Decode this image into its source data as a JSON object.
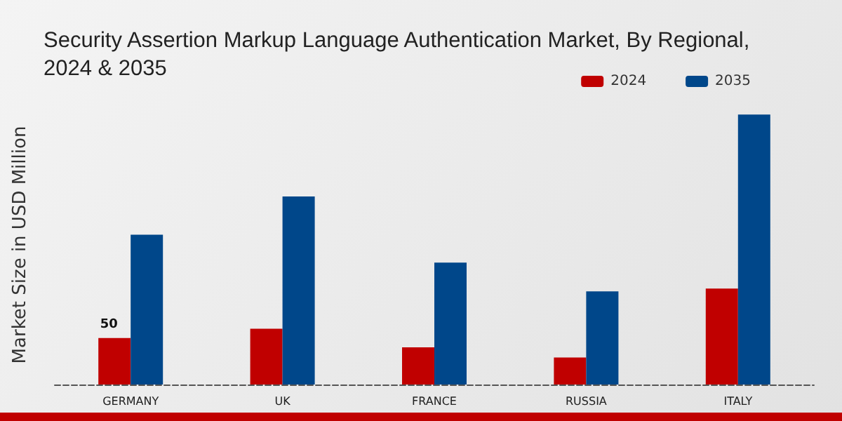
{
  "chart_data": {
    "type": "bar",
    "title": "Security Assertion Markup Language Authentication Market, By Regional,\n2024 & 2035",
    "ylabel": "Market Size in USD Million",
    "categories": [
      "GERMANY",
      "UK",
      "FRANCE",
      "RUSSIA",
      "ITALY"
    ],
    "series": [
      {
        "name": "2024",
        "color": "#c00000",
        "values": [
          50,
          60,
          40,
          29,
          103
        ],
        "value_labels": [
          "50",
          null,
          null,
          null,
          null
        ]
      },
      {
        "name": "2035",
        "color": "#00478a",
        "values": [
          161,
          202,
          131,
          100,
          290
        ]
      }
    ],
    "legend": "top right",
    "grid": false
  }
}
